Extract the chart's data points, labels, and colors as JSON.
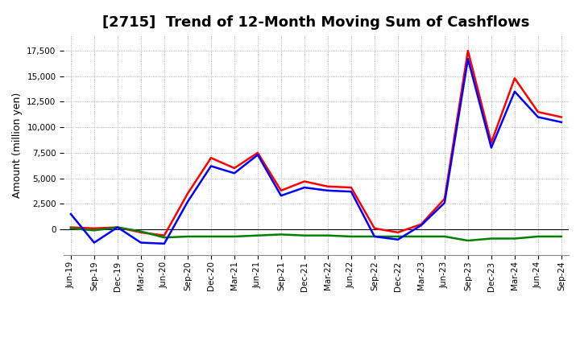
{
  "title": "[2715]  Trend of 12-Month Moving Sum of Cashflows",
  "ylabel": "Amount (million yen)",
  "x_labels": [
    "Jun-19",
    "Sep-19",
    "Dec-19",
    "Mar-20",
    "Jun-20",
    "Sep-20",
    "Dec-20",
    "Mar-21",
    "Jun-21",
    "Sep-21",
    "Dec-21",
    "Mar-22",
    "Jun-22",
    "Sep-22",
    "Dec-22",
    "Mar-23",
    "Jun-23",
    "Sep-23",
    "Dec-23",
    "Mar-24",
    "Jun-24",
    "Sep-24"
  ],
  "operating": [
    200,
    100,
    200,
    -300,
    -600,
    3500,
    7000,
    6000,
    7500,
    3800,
    4700,
    4200,
    4100,
    100,
    -300,
    500,
    3000,
    17500,
    8500,
    14800,
    11500,
    11000
  ],
  "investing": [
    100,
    -100,
    200,
    -200,
    -800,
    -700,
    -700,
    -700,
    -600,
    -500,
    -600,
    -600,
    -700,
    -700,
    -700,
    -700,
    -700,
    -1100,
    -900,
    -900,
    -700,
    -700
  ],
  "free": [
    1500,
    -1300,
    200,
    -1300,
    -1400,
    2700,
    6200,
    5500,
    7300,
    3300,
    4100,
    3800,
    3700,
    -700,
    -1000,
    400,
    2600,
    16700,
    8000,
    13500,
    11000,
    10500
  ],
  "operating_color": "#ff0000",
  "investing_color": "#008000",
  "free_color": "#0000ff",
  "ylim": [
    -2500,
    19000
  ],
  "yticks": [
    0,
    2500,
    5000,
    7500,
    10000,
    12500,
    15000,
    17500
  ],
  "background_color": "#ffffff",
  "grid_color": "#999999",
  "title_fontsize": 13,
  "label_fontsize": 9,
  "tick_fontsize": 7.5,
  "line_width": 1.8
}
